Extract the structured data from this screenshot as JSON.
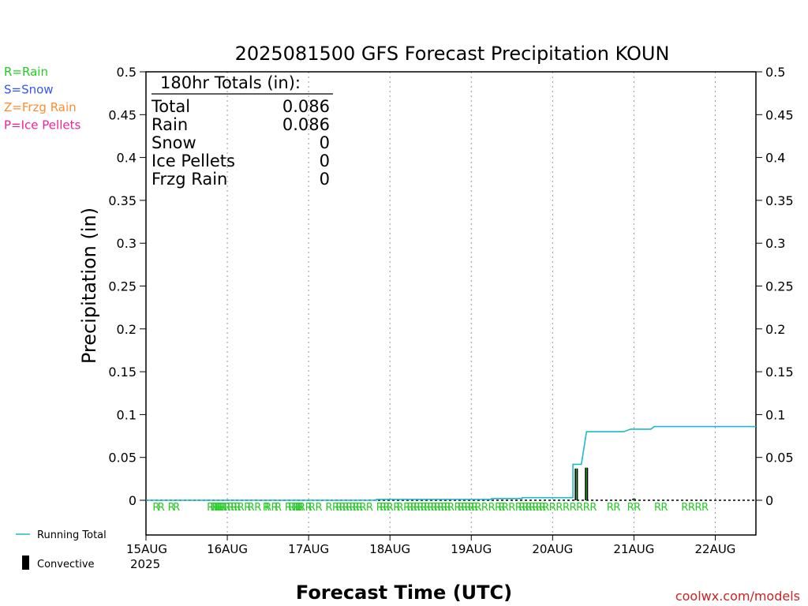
{
  "chart_data": {
    "type": "line",
    "title": "2025081500 GFS Forecast Precipitation KOUN",
    "xlabel": "Forecast Time (UTC)",
    "ylabel": "Precipitation (in)",
    "ylim": [
      0,
      0.5
    ],
    "yticks": [
      "0",
      "0.05",
      "0.1",
      "0.15",
      "0.2",
      "0.25",
      "0.3",
      "0.35",
      "0.4",
      "0.45",
      "0.5"
    ],
    "xlim_hours": [
      0,
      180
    ],
    "xticks": [
      {
        "hour": 0,
        "label": "15AUG",
        "sublabel": "2025"
      },
      {
        "hour": 24,
        "label": "16AUG"
      },
      {
        "hour": 48,
        "label": "17AUG"
      },
      {
        "hour": 72,
        "label": "18AUG"
      },
      {
        "hour": 96,
        "label": "19AUG"
      },
      {
        "hour": 120,
        "label": "20AUG"
      },
      {
        "hour": 144,
        "label": "21AUG"
      },
      {
        "hour": 168,
        "label": "22AUG"
      }
    ],
    "grid": "vertical-dotted",
    "legend_left": [
      {
        "label": "R=Rain",
        "color": "#22cc22"
      },
      {
        "label": "S=Snow",
        "color": "#3355ff"
      },
      {
        "label": "Z=Frzg Rain",
        "color": "#ff8c33"
      },
      {
        "label": "P=Ice Pellets",
        "color": "#ee2299"
      }
    ],
    "legend_bottom": [
      {
        "label": "Running Total",
        "color": "#1fb8c8",
        "kind": "line"
      },
      {
        "label": "Convective",
        "color": "#000000",
        "kind": "bar"
      }
    ],
    "totals": {
      "header": "180hr Totals (in):",
      "rows": [
        {
          "label": "Total",
          "value": "0.086"
        },
        {
          "label": "Rain",
          "value": "0.086"
        },
        {
          "label": "Snow",
          "value": "0"
        },
        {
          "label": "Ice Pellets",
          "value": "0"
        },
        {
          "label": "Frzg Rain",
          "value": "0"
        }
      ]
    },
    "series": [
      {
        "name": "Running Total",
        "color": "#1fb8c8",
        "points": [
          [
            0,
            0
          ],
          [
            68,
            0
          ],
          [
            68,
            0.001
          ],
          [
            102,
            0.001
          ],
          [
            102,
            0.002
          ],
          [
            111,
            0.002
          ],
          [
            111,
            0.003
          ],
          [
            126,
            0.003
          ],
          [
            126,
            0.042
          ],
          [
            128.5,
            0.042
          ],
          [
            130,
            0.08
          ],
          [
            141,
            0.08
          ],
          [
            143,
            0.083
          ],
          [
            149,
            0.083
          ],
          [
            150,
            0.086
          ],
          [
            180,
            0.086
          ]
        ]
      },
      {
        "name": "Convective",
        "color": "#000000",
        "bars": [
          {
            "hour": 127,
            "value": 0.037
          },
          {
            "hour": 130,
            "value": 0.038
          },
          {
            "hour": 144,
            "value": 0.002
          }
        ]
      }
    ],
    "precip_type_hours": [
      3,
      4.5,
      7.5,
      9,
      19,
      20,
      20.5,
      21,
      21.5,
      22,
      22.5,
      23,
      24,
      25,
      26,
      27,
      28,
      30,
      31,
      33,
      35.5,
      36,
      38,
      39,
      42,
      43,
      44,
      44.5,
      45,
      45.5,
      46,
      48,
      49,
      51,
      54,
      56,
      57,
      58,
      59,
      60,
      61,
      62,
      63,
      64,
      66,
      69,
      70,
      71,
      72,
      74,
      75,
      77,
      78,
      79,
      80,
      81,
      82,
      83,
      84,
      85,
      86,
      87,
      88,
      89,
      90,
      92,
      93,
      94,
      95,
      96,
      97,
      98,
      100,
      102,
      104,
      105,
      106,
      108,
      110,
      111,
      112,
      113,
      114,
      115,
      116,
      117,
      118,
      120,
      122,
      124,
      126,
      128,
      130,
      132,
      137,
      139,
      143,
      145,
      151,
      153,
      159,
      161,
      163,
      165
    ],
    "precip_type_letter": "R",
    "credit": "coolwx.com/models"
  }
}
